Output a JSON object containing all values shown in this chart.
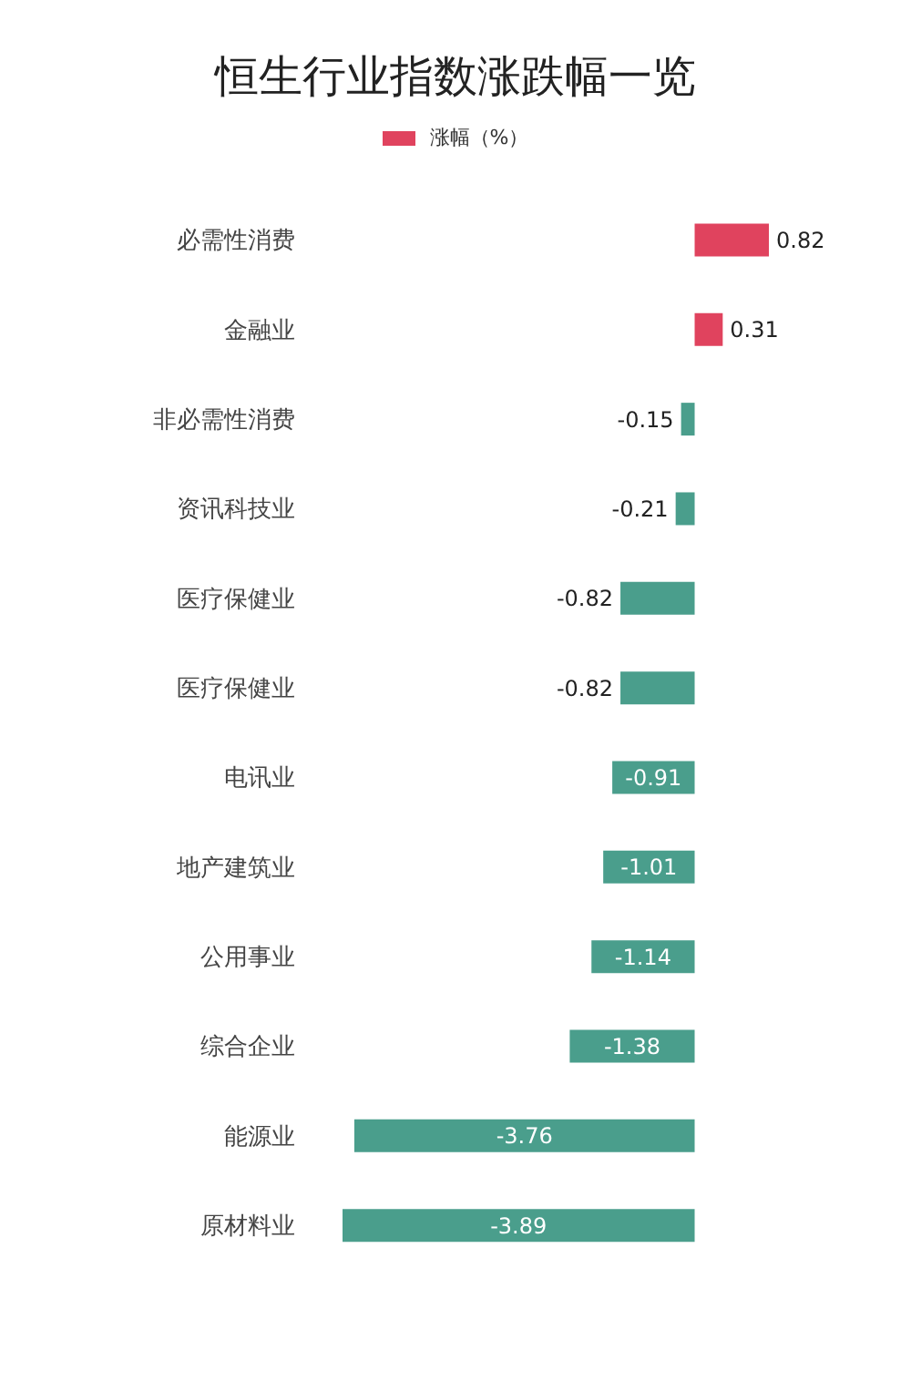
{
  "chart_data": {
    "type": "bar",
    "title": "恒生行业指数涨跌幅一览",
    "orientation": "horizontal",
    "categories": [
      "必需性消费",
      "金融业",
      "非必需性消费",
      "资讯科技业",
      "医疗保健业",
      "医疗保健业",
      "电讯业",
      "地产建筑业",
      "公用事业",
      "综合企业",
      "能源业",
      "原材料业"
    ],
    "series": [
      {
        "name": "涨幅（%）",
        "color": "#e0435e",
        "values": [
          0.82,
          0.31,
          -0.15,
          -0.21,
          -0.82,
          -0.82,
          -0.91,
          -1.01,
          -1.14,
          -1.38,
          -3.76,
          -3.89
        ],
        "colors": [
          "#e0435e",
          "#e0435e",
          "#4a9e8c",
          "#4a9e8c",
          "#4a9e8c",
          "#4a9e8c",
          "#4a9e8c",
          "#4a9e8c",
          "#4a9e8c",
          "#4a9e8c",
          "#4a9e8c",
          "#4a9e8c"
        ]
      }
    ],
    "data_labels": true,
    "legend": "top"
  }
}
